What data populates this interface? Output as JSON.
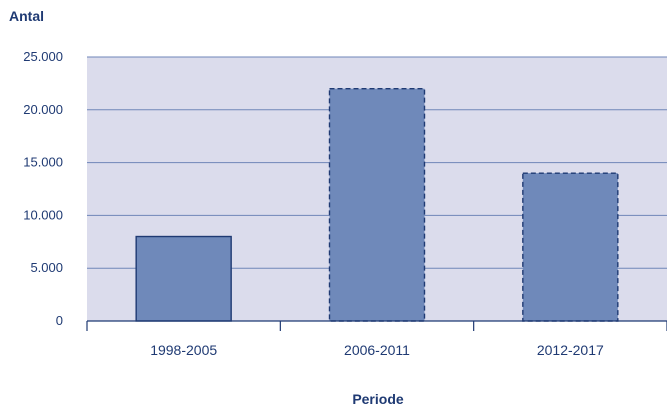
{
  "colors": {
    "plot_bg": "#dbdcec",
    "gridline": "#6f86b8",
    "axis": "#1f3a73",
    "bar_fill": "#6f89ba",
    "bar_stroke": "#1f3a73",
    "text": "#1f3a73"
  },
  "chart_data": {
    "type": "bar",
    "title": "",
    "ylabel": "Antal",
    "xlabel": "Periode",
    "categories": [
      "1998-2005",
      "2006-2011",
      "2012-2017"
    ],
    "values": [
      8000,
      22000,
      14000
    ],
    "bar_styles": [
      "solid",
      "dashed",
      "dashed"
    ],
    "ylim": [
      0,
      25000
    ],
    "yticks": [
      0,
      5000,
      10000,
      15000,
      20000,
      25000
    ],
    "ytick_labels": [
      "0",
      "5.000",
      "10.000",
      "15.000",
      "20.000",
      "25.000"
    ],
    "grid": true,
    "legend": "none"
  }
}
